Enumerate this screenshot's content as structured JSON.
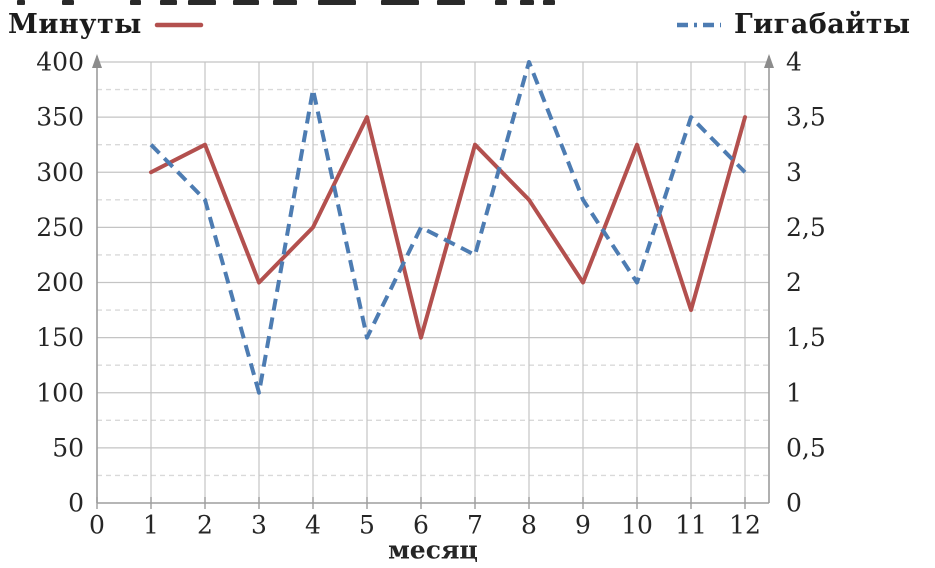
{
  "legend": {
    "series1_label": "Минуты",
    "series2_label": "Гигабайты"
  },
  "colors": {
    "series_minutes": "#b3504e",
    "series_gigabytes": "#4d7cb2",
    "grid_solid": "#c4c4c4",
    "grid_dashed": "#d9d9d9",
    "axis": "#9d9d9d",
    "arrow": "#8c8c8c",
    "text": "#262626"
  },
  "chart_data": {
    "type": "line",
    "title": "",
    "xlabel": "месяц",
    "x": [
      1,
      2,
      3,
      4,
      5,
      6,
      7,
      8,
      9,
      10,
      11,
      12
    ],
    "x_axis": {
      "min": 0,
      "max": 12,
      "tick_labels": [
        "0",
        "1",
        "2",
        "3",
        "4",
        "5",
        "6",
        "7",
        "8",
        "9",
        "10",
        "11",
        "12"
      ]
    },
    "left_axis": {
      "min": 0,
      "max": 400,
      "step": 50,
      "tick_labels": [
        "0",
        "50",
        "100",
        "150",
        "200",
        "250",
        "300",
        "350",
        "400"
      ]
    },
    "right_axis": {
      "min": 0,
      "max": 4,
      "step": 0.5,
      "tick_labels": [
        "0",
        "0,5",
        "1",
        "1,5",
        "2",
        "2,5",
        "3",
        "3,5",
        "4"
      ]
    },
    "grid": {
      "horizontal_solid_every_left_units": 50,
      "horizontal_dashed_every_left_units": 25,
      "vertical_per_month": true
    },
    "legend_position": "top",
    "series": [
      {
        "name": "Минуты",
        "axis": "left",
        "line_style": "solid",
        "color": "#b3504e",
        "values": [
          300,
          325,
          200,
          250,
          350,
          150,
          325,
          275,
          200,
          325,
          175,
          350
        ]
      },
      {
        "name": "Гигабайты",
        "axis": "right",
        "line_style": "dashed",
        "color": "#4d7cb2",
        "values": [
          3.25,
          2.75,
          1,
          3.75,
          1.5,
          2.5,
          2.25,
          4,
          2.75,
          2,
          3.5,
          3
        ]
      }
    ]
  }
}
